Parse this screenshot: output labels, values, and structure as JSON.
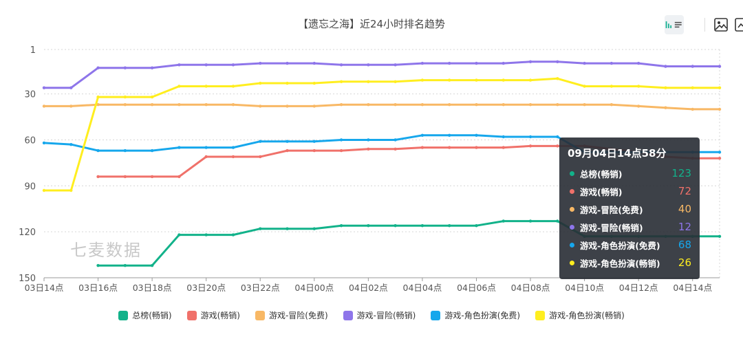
{
  "chart_data": {
    "type": "line",
    "title": "【遗忘之海】近24小时排名趋势",
    "y_inverted": true,
    "ylim": [
      1,
      150
    ],
    "y_ticks": [
      1,
      30,
      60,
      90,
      120,
      150
    ],
    "x": [
      "03日14点",
      "03日15点",
      "03日16点",
      "03日17点",
      "03日18点",
      "03日19点",
      "03日20点",
      "03日21点",
      "03日22点",
      "03日23点",
      "04日00点",
      "04日01点",
      "04日02点",
      "04日03点",
      "04日04点",
      "04日05点",
      "04日06点",
      "04日07点",
      "04日08点",
      "04日09点",
      "04日10点",
      "04日11点",
      "04日12点",
      "04日13点",
      "04日14点",
      "04日15点"
    ],
    "x_tick_labels": [
      "03日14点",
      "03日16点",
      "03日18点",
      "03日20点",
      "03日22点",
      "04日00点",
      "04日02点",
      "04日04点",
      "04日06点",
      "04日08点",
      "04日10点",
      "04日12点",
      "04日14点"
    ],
    "grid": true,
    "legend_position": "bottom",
    "series": [
      {
        "name": "总榜(畅销)",
        "color": "#12b28a",
        "values": [
          null,
          null,
          142,
          142,
          142,
          122,
          122,
          122,
          118,
          118,
          118,
          116,
          116,
          116,
          116,
          116,
          116,
          113,
          113,
          113,
          123,
          123,
          123,
          123,
          123,
          123
        ]
      },
      {
        "name": "游戏(畅销)",
        "color": "#f0716a",
        "values": [
          null,
          null,
          84,
          84,
          84,
          84,
          71,
          71,
          71,
          67,
          67,
          67,
          66,
          66,
          65,
          65,
          65,
          65,
          64,
          64,
          64,
          66,
          68,
          71,
          72,
          72
        ]
      },
      {
        "name": "游戏-冒险(免费)",
        "color": "#f8b865",
        "values": [
          38,
          38,
          37,
          37,
          37,
          37,
          37,
          37,
          38,
          38,
          38,
          37,
          37,
          37,
          37,
          37,
          37,
          37,
          37,
          37,
          37,
          37,
          38,
          39,
          40,
          40
        ]
      },
      {
        "name": "游戏-冒险(畅销)",
        "color": "#8e75ea",
        "values": [
          26,
          26,
          13,
          13,
          13,
          11,
          11,
          11,
          10,
          10,
          10,
          11,
          11,
          11,
          10,
          10,
          10,
          10,
          9,
          9,
          10,
          10,
          10,
          12,
          12,
          12
        ]
      },
      {
        "name": "游戏-角色扮演(免费)",
        "color": "#16a7ec",
        "values": [
          62,
          63,
          67,
          67,
          67,
          65,
          65,
          65,
          61,
          61,
          61,
          60,
          60,
          60,
          57,
          57,
          57,
          58,
          58,
          58,
          68,
          68,
          68,
          68,
          68,
          68
        ]
      },
      {
        "name": "游戏-角色扮演(畅销)",
        "color": "#ffee1f",
        "values": [
          93,
          93,
          32,
          32,
          32,
          25,
          25,
          25,
          23,
          23,
          23,
          22,
          22,
          22,
          21,
          21,
          21,
          21,
          21,
          20,
          25,
          25,
          25,
          26,
          26,
          26
        ]
      }
    ]
  },
  "watermark": "七麦数据",
  "tooltip": {
    "title": "09月04日14点58分",
    "rows": [
      {
        "label": "总榜(畅销)",
        "value": "123",
        "color": "#12b28a"
      },
      {
        "label": "游戏(畅销)",
        "value": "72",
        "color": "#f0716a"
      },
      {
        "label": "游戏-冒险(免费)",
        "value": "40",
        "color": "#f8b865"
      },
      {
        "label": "游戏-冒险(畅销)",
        "value": "12",
        "color": "#8e75ea"
      },
      {
        "label": "游戏-角色扮演(免费)",
        "value": "68",
        "color": "#16a7ec"
      },
      {
        "label": "游戏-角色扮演(畅销)",
        "value": "26",
        "color": "#ffee1f"
      }
    ]
  },
  "toolbar": {
    "icons": [
      "bar-chart-icon",
      "list-icon",
      "image-icon",
      "chart-edit-icon"
    ]
  }
}
